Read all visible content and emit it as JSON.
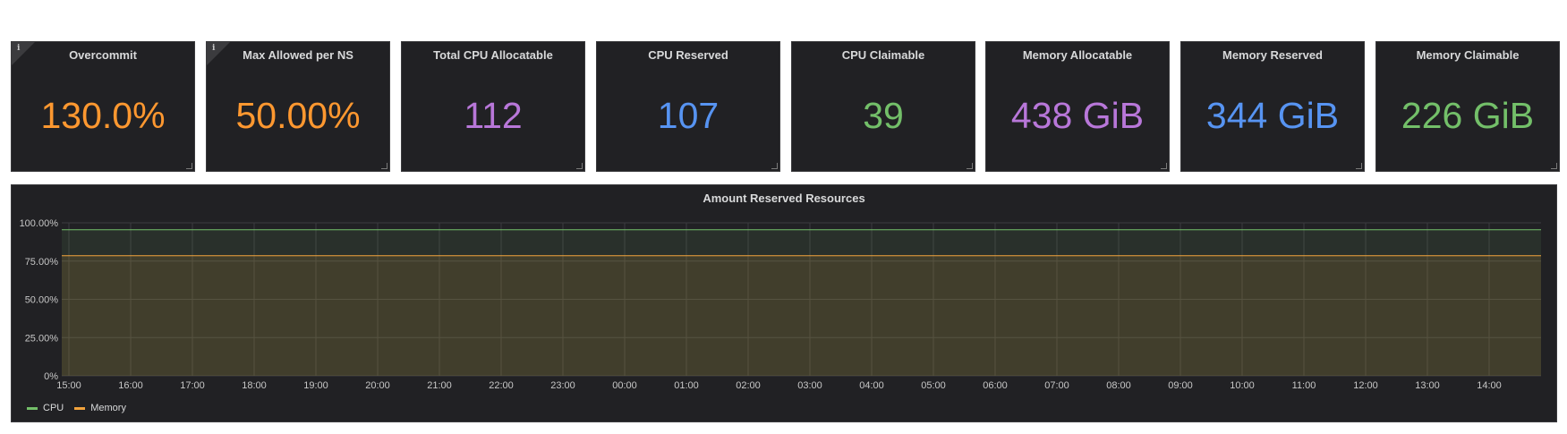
{
  "stats": [
    {
      "title": "Overcommit",
      "value": "130.0%",
      "color": "#ff9830",
      "info": true
    },
    {
      "title": "Max Allowed per NS",
      "value": "50.00%",
      "color": "#ff9830",
      "info": true
    },
    {
      "title": "Total CPU Allocatable",
      "value": "112",
      "color": "#b877d9",
      "info": false
    },
    {
      "title": "CPU Reserved",
      "value": "107",
      "color": "#5794f2",
      "info": false
    },
    {
      "title": "CPU Claimable",
      "value": "39",
      "color": "#73bf69",
      "info": false
    },
    {
      "title": "Memory Allocatable",
      "value": "438 GiB",
      "color": "#b877d9",
      "info": false
    },
    {
      "title": "Memory Reserved",
      "value": "344 GiB",
      "color": "#5794f2",
      "info": false
    },
    {
      "title": "Memory Claimable",
      "value": "226 GiB",
      "color": "#73bf69",
      "info": false
    }
  ],
  "info_glyph": "i",
  "graph": {
    "title": "Amount Reserved Resources",
    "legend": [
      {
        "name": "CPU",
        "color": "#73bf69"
      },
      {
        "name": "Memory",
        "color": "#f2a33c"
      }
    ]
  },
  "chart_data": {
    "type": "area",
    "title": "Amount Reserved Resources",
    "x": [
      "15:00",
      "16:00",
      "17:00",
      "18:00",
      "19:00",
      "20:00",
      "21:00",
      "22:00",
      "23:00",
      "00:00",
      "01:00",
      "02:00",
      "03:00",
      "04:00",
      "05:00",
      "06:00",
      "07:00",
      "08:00",
      "09:00",
      "10:00",
      "11:00",
      "12:00",
      "13:00",
      "14:00"
    ],
    "y_ticks": [
      "0%",
      "25.00%",
      "50.00%",
      "75.00%",
      "100.00%"
    ],
    "ylim": [
      0,
      100
    ],
    "grid": true,
    "legend_position": "bottom-left",
    "series": [
      {
        "name": "CPU",
        "color": "#73bf69",
        "values": [
          95.5,
          95.5,
          95.5,
          95.5,
          95.5,
          95.5,
          95.5,
          95.5,
          95.5,
          95.5,
          95.5,
          95.5,
          95.5,
          95.5,
          95.5,
          95.5,
          95.5,
          95.5,
          95.5,
          95.5,
          95.5,
          95.5,
          95.5,
          95.5
        ]
      },
      {
        "name": "Memory",
        "color": "#f2a33c",
        "values": [
          78.5,
          78.5,
          78.5,
          78.5,
          78.5,
          78.5,
          78.5,
          78.5,
          78.5,
          78.5,
          78.5,
          78.5,
          78.5,
          78.5,
          78.5,
          78.5,
          78.5,
          78.5,
          78.5,
          78.5,
          78.5,
          78.5,
          78.5,
          78.5
        ]
      }
    ]
  }
}
